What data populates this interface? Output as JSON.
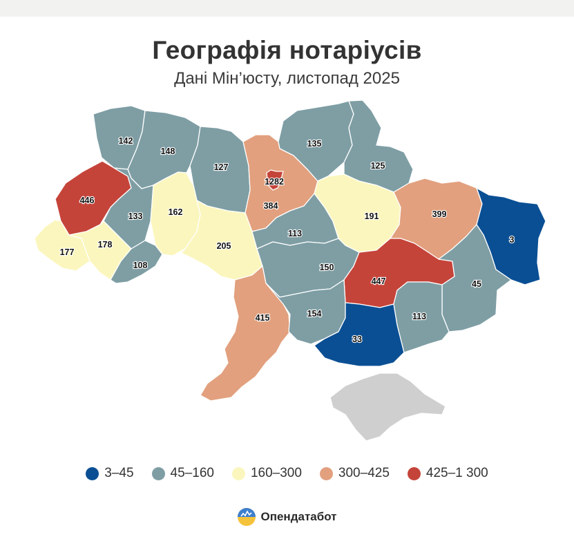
{
  "title": "Географія нотаріусів",
  "subtitle": "Дані Мін’юсту, листопад 2025",
  "legend": [
    {
      "label": "3–45",
      "color": "#0a4f94"
    },
    {
      "label": "45–160",
      "color": "#7e9ea4"
    },
    {
      "label": "160–300",
      "color": "#fbf6bd"
    },
    {
      "label": "300–425",
      "color": "#e2a07e"
    },
    {
      "label": "425–1 300",
      "color": "#c5443a"
    }
  ],
  "no_data_color": "#cfcfcf",
  "regions": [
    {
      "key": "volyn",
      "value": "142",
      "bin": 1
    },
    {
      "key": "rivne",
      "value": "148",
      "bin": 1
    },
    {
      "key": "zhytomyr",
      "value": "127",
      "bin": 1
    },
    {
      "key": "kyiv_oblast",
      "value": "384",
      "bin": 3
    },
    {
      "key": "kyiv_city",
      "value": "1282",
      "bin": 4
    },
    {
      "key": "chernihiv",
      "value": "135",
      "bin": 1
    },
    {
      "key": "sumy",
      "value": "125",
      "bin": 1
    },
    {
      "key": "lviv",
      "value": "446",
      "bin": 4
    },
    {
      "key": "ternopil",
      "value": "133",
      "bin": 1
    },
    {
      "key": "khmelnytskyi",
      "value": "162",
      "bin": 2
    },
    {
      "key": "vinnytsia",
      "value": "205",
      "bin": 2
    },
    {
      "key": "cherkasy",
      "value": "113",
      "bin": 1
    },
    {
      "key": "poltava",
      "value": "191",
      "bin": 2
    },
    {
      "key": "kharkiv",
      "value": "399",
      "bin": 3
    },
    {
      "key": "luhansk",
      "value": "3",
      "bin": 0
    },
    {
      "key": "zakarpattia",
      "value": "177",
      "bin": 2
    },
    {
      "key": "ivano_frankivsk",
      "value": "178",
      "bin": 2
    },
    {
      "key": "chernivtsi",
      "value": "108",
      "bin": 1
    },
    {
      "key": "kirovohrad",
      "value": "150",
      "bin": 1
    },
    {
      "key": "dnipropetrovsk",
      "value": "447",
      "bin": 4
    },
    {
      "key": "donetsk",
      "value": "45",
      "bin": 1
    },
    {
      "key": "odesa",
      "value": "415",
      "bin": 3
    },
    {
      "key": "mykolaiv",
      "value": "154",
      "bin": 1
    },
    {
      "key": "kherson",
      "value": "33",
      "bin": 0
    },
    {
      "key": "zaporizhzhia",
      "value": "113",
      "bin": 1
    },
    {
      "key": "crimea",
      "value": "",
      "bin": -1
    }
  ],
  "brand": {
    "name": "Опендатабот",
    "icon": "opendatabot-logo-icon"
  }
}
